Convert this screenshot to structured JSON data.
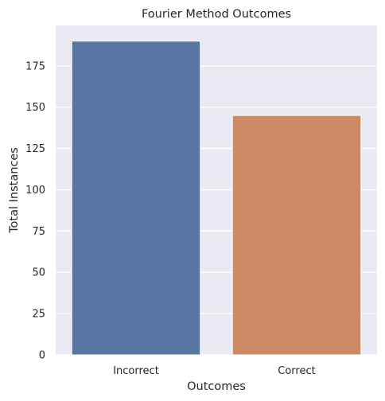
{
  "chart_data": {
    "type": "bar",
    "title": "Fourier Method Outcomes",
    "xlabel": "Outcomes",
    "ylabel": "Total Instances",
    "categories": [
      "Incorrect",
      "Correct"
    ],
    "values": [
      190,
      145
    ],
    "ylim": [
      0,
      199.5
    ],
    "yticks": [
      0,
      25,
      50,
      75,
      100,
      125,
      150,
      175
    ],
    "ytick_labels": [
      "0",
      "25",
      "50",
      "75",
      "100",
      "125",
      "150",
      "175"
    ],
    "grid": true,
    "legend": "none",
    "colors": {
      "background": "#eaeaf2",
      "grid": "#ffffff",
      "bars": [
        "#5975a4",
        "#cc8963"
      ]
    }
  }
}
